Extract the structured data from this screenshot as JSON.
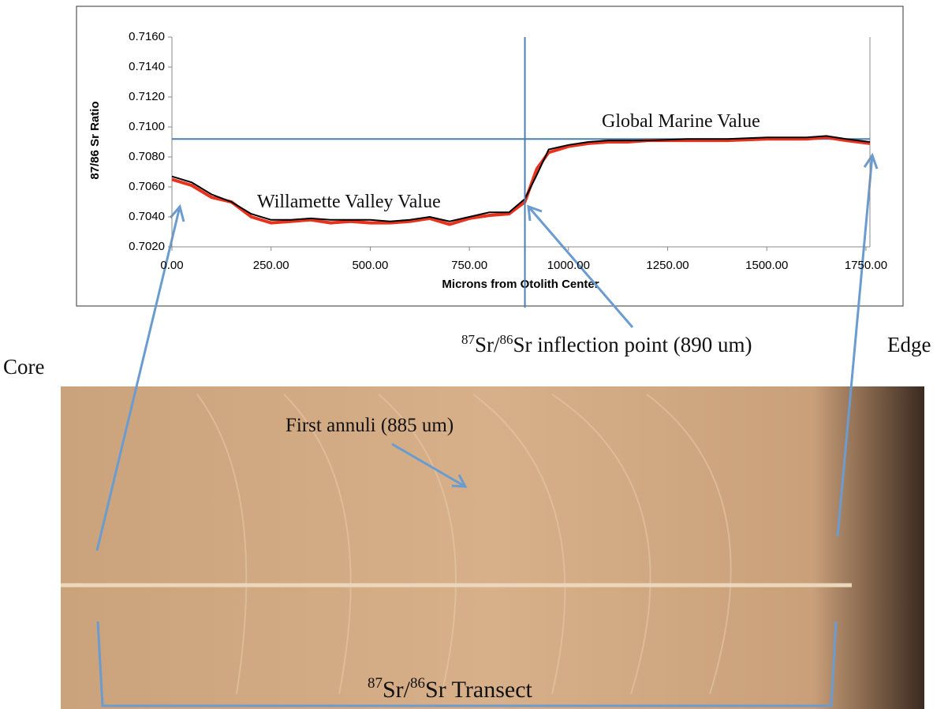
{
  "chart_data": {
    "type": "line",
    "x_label": "Microns from Otolith Center",
    "y_label": "87/86 Sr Ratio",
    "x": [
      0,
      50,
      100,
      150,
      200,
      250,
      300,
      350,
      400,
      450,
      500,
      550,
      600,
      650,
      700,
      750,
      800,
      850,
      890,
      920,
      950,
      1000,
      1050,
      1100,
      1150,
      1200,
      1300,
      1400,
      1500,
      1600,
      1650,
      1700,
      1760
    ],
    "series": [
      {
        "color": "#000000",
        "values": [
          0.7067,
          0.7063,
          0.7055,
          0.705,
          0.7042,
          0.7038,
          0.7038,
          0.7039,
          0.7038,
          0.7038,
          0.7038,
          0.7037,
          0.7038,
          0.704,
          0.7037,
          0.704,
          0.7043,
          0.7043,
          0.7052,
          0.7068,
          0.7085,
          0.7088,
          0.709,
          0.7091,
          0.7091,
          0.7091,
          0.7092,
          0.7092,
          0.7093,
          0.7093,
          0.7094,
          0.7092,
          0.709
        ]
      },
      {
        "color": "#e8321e",
        "values": [
          0.7065,
          0.7061,
          0.7053,
          0.705,
          0.704,
          0.7036,
          0.7037,
          0.7038,
          0.7036,
          0.7037,
          0.7036,
          0.7036,
          0.7037,
          0.7039,
          0.7035,
          0.7039,
          0.7041,
          0.7042,
          0.705,
          0.7072,
          0.7083,
          0.7087,
          0.7089,
          0.709,
          0.709,
          0.7091,
          0.7091,
          0.7091,
          0.7092,
          0.7092,
          0.7093,
          0.7091,
          0.7089
        ]
      }
    ],
    "xlim": [
      0,
      1760
    ],
    "ylim": [
      0.702,
      0.716
    ],
    "xticks": [
      {
        "value": 0,
        "label": "0.00"
      },
      {
        "value": 250,
        "label": "250.00"
      },
      {
        "value": 500,
        "label": "500.00"
      },
      {
        "value": 750,
        "label": "750.00"
      },
      {
        "value": 1000,
        "label": "1000.00"
      },
      {
        "value": 1250,
        "label": "1250.00"
      },
      {
        "value": 1500,
        "label": "1500.00"
      },
      {
        "value": 1750,
        "label": "1750.00"
      }
    ],
    "yticks": [
      {
        "value": 0.702,
        "label": "0.7020"
      },
      {
        "value": 0.704,
        "label": "0.7040"
      },
      {
        "value": 0.706,
        "label": "0.7060"
      },
      {
        "value": 0.708,
        "label": "0.7080"
      },
      {
        "value": 0.71,
        "label": "0.7100"
      },
      {
        "value": 0.712,
        "label": "0.7120"
      },
      {
        "value": 0.714,
        "label": "0.7140"
      },
      {
        "value": 0.716,
        "label": "0.7160"
      }
    ],
    "hline": 0.7092,
    "vline": 890,
    "line_color": "#4a7fae",
    "annotations": [
      "Global Marine Value",
      "Willamette Valley Value"
    ]
  },
  "figure": {
    "inflection": {
      "sup1": "87",
      "t1": "Sr/",
      "sup2": "86",
      "t2": "Sr inflection point (890 um)"
    },
    "edge": "Edge",
    "core": "Core",
    "annuli": "First annuli (885 um)",
    "transect": {
      "sup1": "87",
      "t1": "Sr/",
      "sup2": "86",
      "t2": "Sr Transect"
    }
  }
}
